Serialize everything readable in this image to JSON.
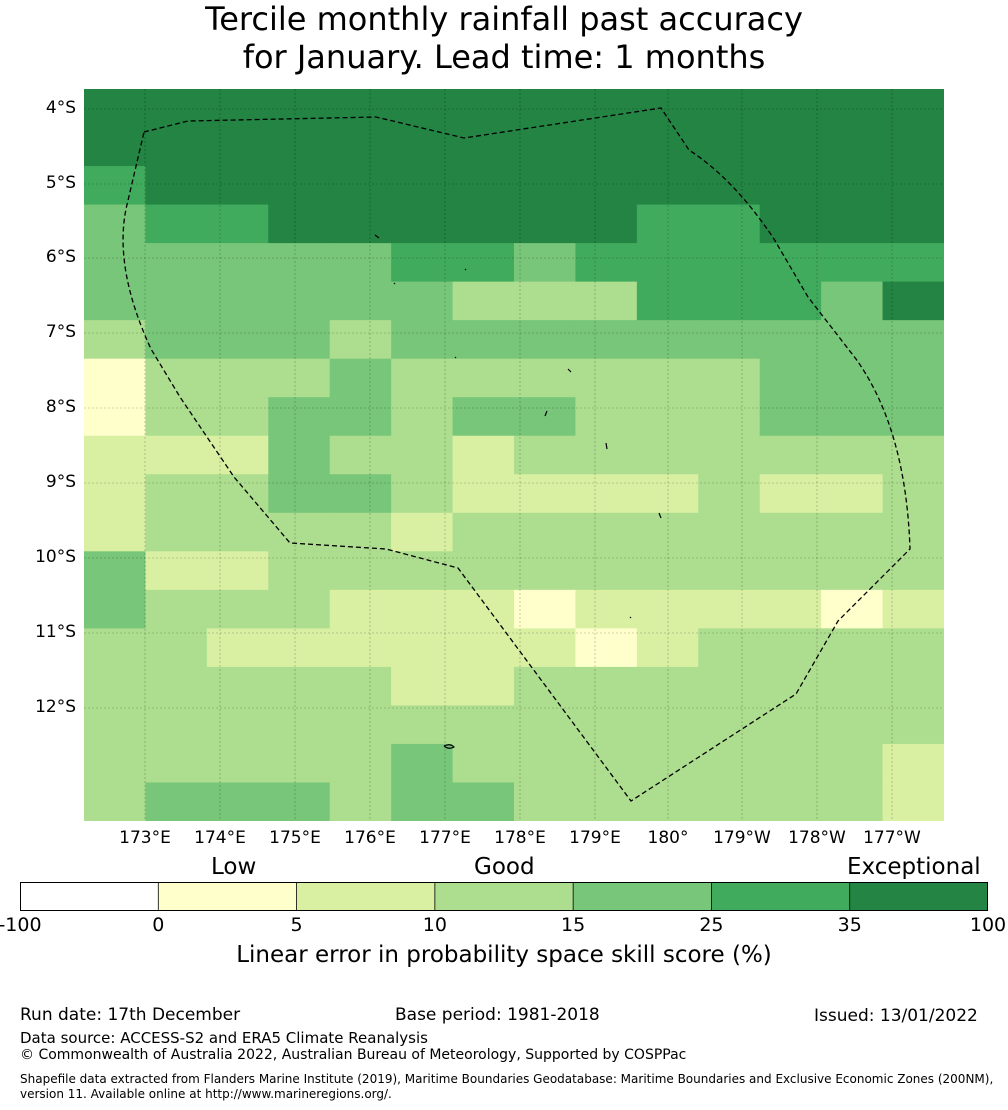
{
  "title": {
    "line1": "Tercile monthly rainfall past accuracy",
    "line2": "for January. Lead time: 1 months"
  },
  "map": {
    "lat_labels": [
      "4°S",
      "5°S",
      "6°S",
      "7°S",
      "8°S",
      "9°S",
      "10°S",
      "11°S",
      "12°S"
    ],
    "lon_labels": [
      "173°E",
      "174°E",
      "175°E",
      "176°E",
      "177°E",
      "178°E",
      "179°E",
      "180°",
      "179°W",
      "178°W",
      "177°W"
    ],
    "boundary_color": "#000000",
    "grid": [
      "55555555555555",
      "55555555555555",
      "45555555555555",
      "34455555544555",
      "33333443444444",
      "33333322244435",
      "23332333333333",
      "02223222222333",
      "02233233222333",
      "11132212222222",
      "12233211112112",
      "12222122222222",
      "31122222222222",
      "32221110111101",
      "22111111012222",
      "22222112222222",
      "22222222222222",
      "22222322222221",
      "23332332222221"
    ]
  },
  "colorbar": {
    "categories": [
      "Low",
      "Good",
      "Exceptional"
    ],
    "ticks": [
      "-100",
      "0",
      "5",
      "10",
      "15",
      "25",
      "35",
      "100"
    ],
    "colors": [
      "#ffffff",
      "#ffffcc",
      "#d9f0a3",
      "#addd8e",
      "#78c679",
      "#41ab5d",
      "#238443"
    ],
    "label": "Linear error in probability space skill score (%)"
  },
  "footer": {
    "run_date": "Run date: 17th December",
    "base_period": "Base period: 1981-2018",
    "issued": "Issued: 13/01/2022",
    "data_source": "Data source: ACCESS-S2 and ERA5 Climate Reanalysis",
    "copyright": "© Commonwealth of Australia 2022, Australian Bureau of Meteorology, Supported by COSPPac",
    "shapefile_line1": "Shapefile data extracted from Flanders Marine Institute (2019), Maritime Boundaries Geodatabase: Maritime Boundaries and Exclusive Economic Zones (200NM),",
    "shapefile_line2": "version 11. Available online at http://www.marineregions.org/."
  }
}
